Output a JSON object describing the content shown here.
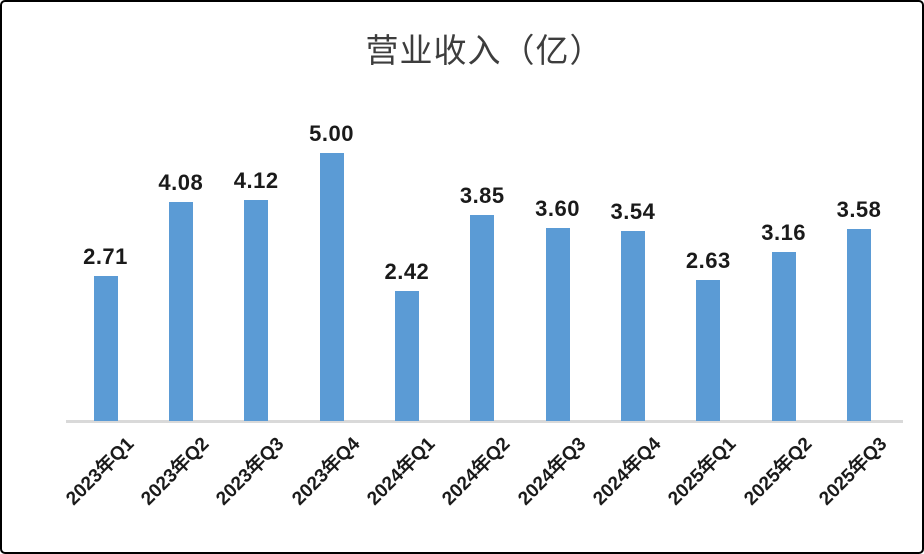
{
  "chart_data": {
    "type": "bar",
    "title": "营业收入（亿）",
    "categories": [
      "2023年Q1",
      "2023年Q2",
      "2023年Q3",
      "2023年Q4",
      "2024年Q1",
      "2024年Q2",
      "2024年Q3",
      "2024年Q4",
      "2025年Q1",
      "2025年Q2",
      "2025年Q3"
    ],
    "values": [
      2.71,
      4.08,
      4.12,
      5.0,
      2.42,
      3.85,
      3.6,
      3.54,
      2.63,
      3.16,
      3.58
    ],
    "value_labels": [
      "2.71",
      "4.08",
      "4.12",
      "5.00",
      "2.42",
      "3.85",
      "3.60",
      "3.54",
      "2.63",
      "3.16",
      "3.58"
    ],
    "xlabel": "",
    "ylabel": "",
    "ylim": [
      0,
      5
    ],
    "grid": false,
    "legend": false,
    "data_labels_position": "above-bars",
    "x_tick_rotation_deg": 45,
    "bar_color": "#5B9BD5",
    "axis_line_color": "#D9D9D9",
    "data_label_color": "#1A1A1A",
    "title_color": "#3D3D3D"
  }
}
